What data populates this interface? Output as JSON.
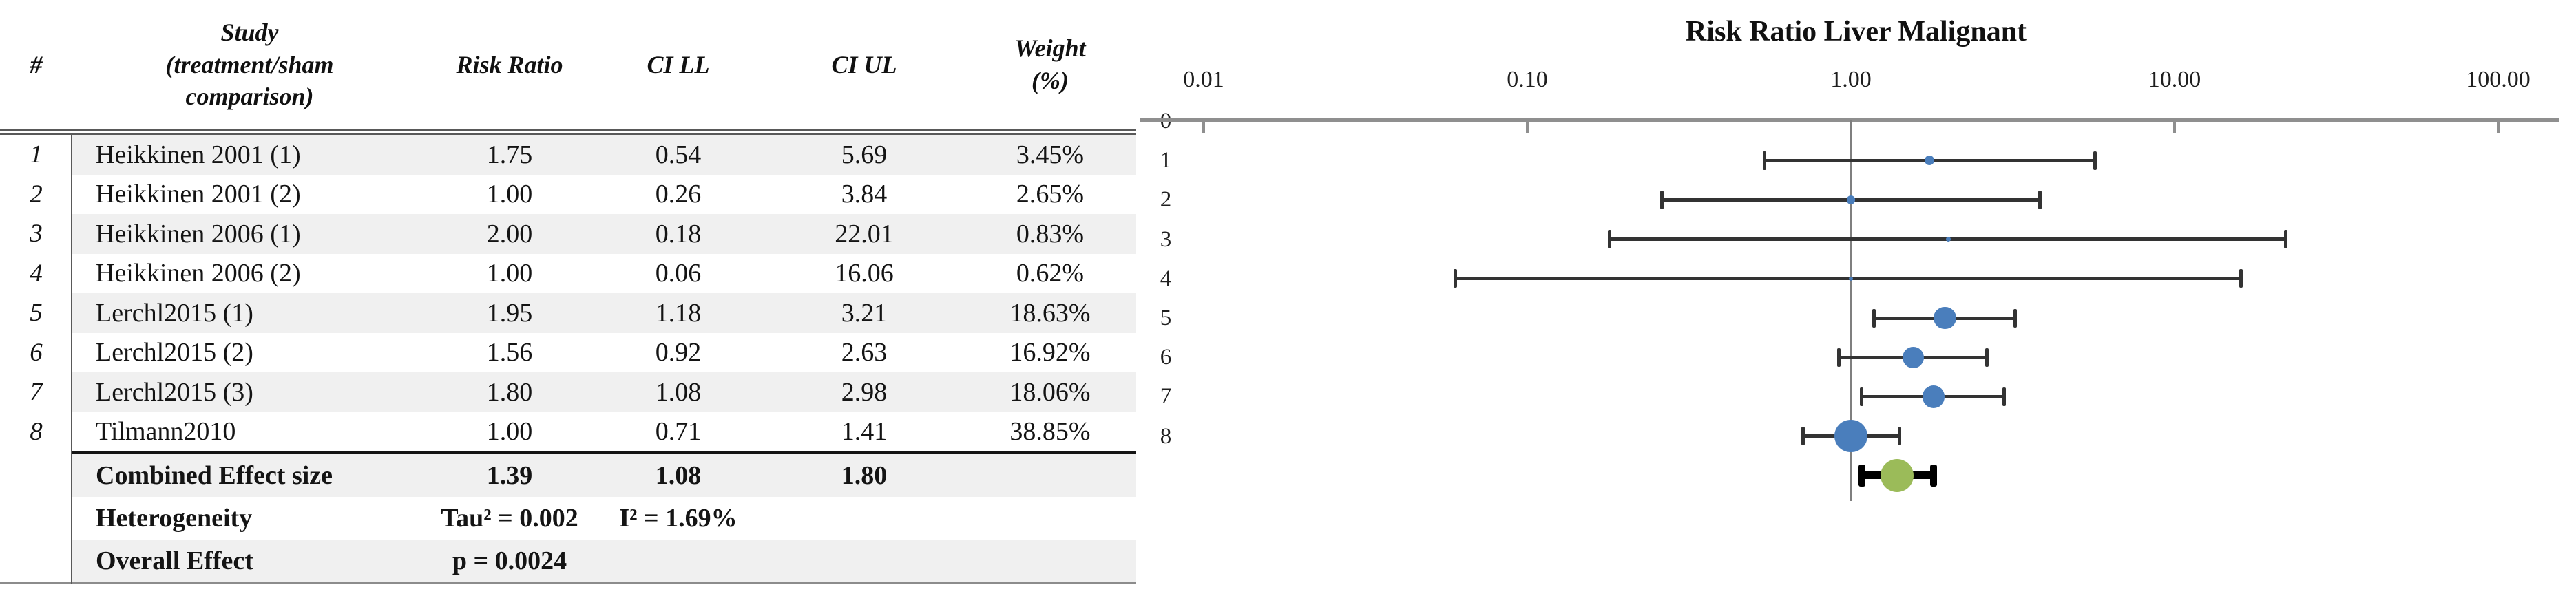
{
  "table": {
    "headers": {
      "num": "#",
      "study": "Study\n(treatment/sham\ncomparison)",
      "risk_ratio": "Risk Ratio",
      "ci_ll": "CI LL",
      "ci_ul": "CI UL",
      "weight": "Weight\n(%)"
    },
    "rows": [
      {
        "num": "1",
        "study": "Heikkinen 2001 (1)",
        "risk_ratio": "1.75",
        "ci_ll": "0.54",
        "ci_ul": "5.69",
        "weight": "3.45%"
      },
      {
        "num": "2",
        "study": "Heikkinen 2001 (2)",
        "risk_ratio": "1.00",
        "ci_ll": "0.26",
        "ci_ul": "3.84",
        "weight": "2.65%"
      },
      {
        "num": "3",
        "study": "Heikkinen 2006 (1)",
        "risk_ratio": "2.00",
        "ci_ll": "0.18",
        "ci_ul": "22.01",
        "weight": "0.83%"
      },
      {
        "num": "4",
        "study": "Heikkinen 2006 (2)",
        "risk_ratio": "1.00",
        "ci_ll": "0.06",
        "ci_ul": "16.06",
        "weight": "0.62%"
      },
      {
        "num": "5",
        "study": "Lerchl2015 (1)",
        "risk_ratio": "1.95",
        "ci_ll": "1.18",
        "ci_ul": "3.21",
        "weight": "18.63%"
      },
      {
        "num": "6",
        "study": "Lerchl2015 (2)",
        "risk_ratio": "1.56",
        "ci_ll": "0.92",
        "ci_ul": "2.63",
        "weight": "16.92%"
      },
      {
        "num": "7",
        "study": "Lerchl2015 (3)",
        "risk_ratio": "1.80",
        "ci_ll": "1.08",
        "ci_ul": "2.98",
        "weight": "18.06%"
      },
      {
        "num": "8",
        "study": "Tilmann2010",
        "risk_ratio": "1.00",
        "ci_ll": "0.71",
        "ci_ul": "1.41",
        "weight": "38.85%"
      }
    ],
    "summary": {
      "combined": {
        "label": "Combined Effect size",
        "risk_ratio": "1.39",
        "ci_ll": "1.08",
        "ci_ul": "1.80"
      },
      "heterogeneity": {
        "label": "Heterogeneity",
        "tau2": "Tau² = 0.002",
        "i2": "I² = 1.69%"
      },
      "overall": {
        "label": "Overall Effect",
        "p": "p = 0.0024"
      }
    }
  },
  "chart_data": {
    "type": "scatter",
    "subtype": "forest-plot",
    "title": "Risk Ratio Liver Malignant",
    "x_scale": "log",
    "x_ticks": [
      0.01,
      0.1,
      1.0,
      10.0,
      100.0
    ],
    "x_tick_labels": [
      "0.01",
      "0.10",
      "1.00",
      "10.00",
      "100.00"
    ],
    "xlim": [
      0.006,
      150
    ],
    "y_labels": [
      "0",
      "1",
      "2",
      "3",
      "4",
      "5",
      "6",
      "7",
      "8"
    ],
    "reference_line": 1.0,
    "grid": false,
    "legend": "none",
    "marker_size_rule": "marker area proportional to study weight",
    "studies": [
      {
        "row": 1,
        "label": "Heikkinen 2001 (1)",
        "rr": 1.75,
        "ci_ll": 0.54,
        "ci_ul": 5.69,
        "weight_pct": 3.45
      },
      {
        "row": 2,
        "label": "Heikkinen 2001 (2)",
        "rr": 1.0,
        "ci_ll": 0.26,
        "ci_ul": 3.84,
        "weight_pct": 2.65
      },
      {
        "row": 3,
        "label": "Heikkinen 2006 (1)",
        "rr": 2.0,
        "ci_ll": 0.18,
        "ci_ul": 22.01,
        "weight_pct": 0.83
      },
      {
        "row": 4,
        "label": "Heikkinen 2006 (2)",
        "rr": 1.0,
        "ci_ll": 0.06,
        "ci_ul": 16.06,
        "weight_pct": 0.62
      },
      {
        "row": 5,
        "label": "Lerchl2015 (1)",
        "rr": 1.95,
        "ci_ll": 1.18,
        "ci_ul": 3.21,
        "weight_pct": 18.63
      },
      {
        "row": 6,
        "label": "Lerchl2015 (2)",
        "rr": 1.56,
        "ci_ll": 0.92,
        "ci_ul": 2.63,
        "weight_pct": 16.92
      },
      {
        "row": 7,
        "label": "Lerchl2015 (3)",
        "rr": 1.8,
        "ci_ll": 1.08,
        "ci_ul": 2.98,
        "weight_pct": 18.06
      },
      {
        "row": 8,
        "label": "Tilmann2010",
        "rr": 1.0,
        "ci_ll": 0.71,
        "ci_ul": 1.41,
        "weight_pct": 38.85
      }
    ],
    "summary": {
      "label": "Combined Effect size",
      "rr": 1.39,
      "ci_ll": 1.08,
      "ci_ul": 1.8
    },
    "colors": {
      "study_marker": "#4a7ebc",
      "summary_marker": "#9bbb59",
      "whisker": "#333333",
      "summary_whisker": "#000000",
      "axis": "#8f8f8f",
      "ref_line": "#7f7f7f",
      "text": "#1f1f1f"
    }
  }
}
